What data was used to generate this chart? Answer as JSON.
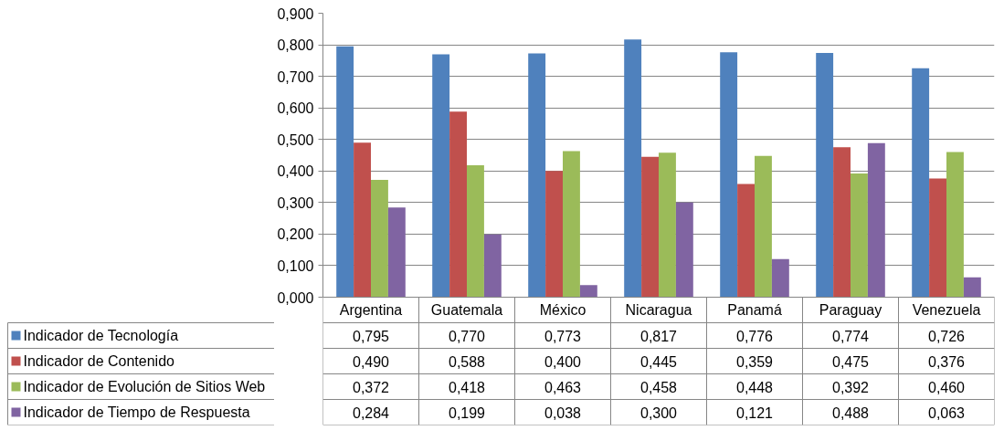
{
  "chart_data": {
    "type": "bar",
    "categories": [
      "Argentina",
      "Guatemala",
      "México",
      "Nicaragua",
      "Panamá",
      "Paraguay",
      "Venezuela"
    ],
    "series": [
      {
        "name": "Indicador de Tecnología",
        "color": "#4f81bd",
        "values": [
          0.795,
          0.77,
          0.773,
          0.817,
          0.776,
          0.774,
          0.726
        ],
        "value_labels": [
          "0,795",
          "0,770",
          "0,773",
          "0,817",
          "0,776",
          "0,774",
          "0,726"
        ]
      },
      {
        "name": "Indicador de Contenido",
        "color": "#c0504d",
        "values": [
          0.49,
          0.588,
          0.4,
          0.445,
          0.359,
          0.475,
          0.376
        ],
        "value_labels": [
          "0,490",
          "0,588",
          "0,400",
          "0,445",
          "0,359",
          "0,475",
          "0,376"
        ]
      },
      {
        "name": "Indicador de Evolución de Sitios Web",
        "color": "#9bbb59",
        "values": [
          0.372,
          0.418,
          0.463,
          0.458,
          0.448,
          0.392,
          0.46
        ],
        "value_labels": [
          "0,372",
          "0,418",
          "0,463",
          "0,458",
          "0,448",
          "0,392",
          "0,460"
        ]
      },
      {
        "name": "Indicador de Tiempo de Respuesta",
        "color": "#8064a2",
        "values": [
          0.284,
          0.199,
          0.038,
          0.3,
          0.121,
          0.488,
          0.063
        ],
        "value_labels": [
          "0,284",
          "0,199",
          "0,038",
          "0,300",
          "0,121",
          "0,488",
          "0,063"
        ]
      }
    ],
    "ylim": [
      0,
      0.9
    ],
    "yticks": [
      {
        "value": 0,
        "label": "0,000"
      },
      {
        "value": 0.1,
        "label": "0,100"
      },
      {
        "value": 0.2,
        "label": "0,200"
      },
      {
        "value": 0.3,
        "label": "0,300"
      },
      {
        "value": 0.4,
        "label": "0,400"
      },
      {
        "value": 0.5,
        "label": "0,500"
      },
      {
        "value": 0.6,
        "label": "0,600"
      },
      {
        "value": 0.7,
        "label": "0,700"
      },
      {
        "value": 0.8,
        "label": "0,800"
      },
      {
        "value": 0.9,
        "label": "0,900"
      }
    ],
    "grid": "y",
    "legend": "bottom left"
  }
}
